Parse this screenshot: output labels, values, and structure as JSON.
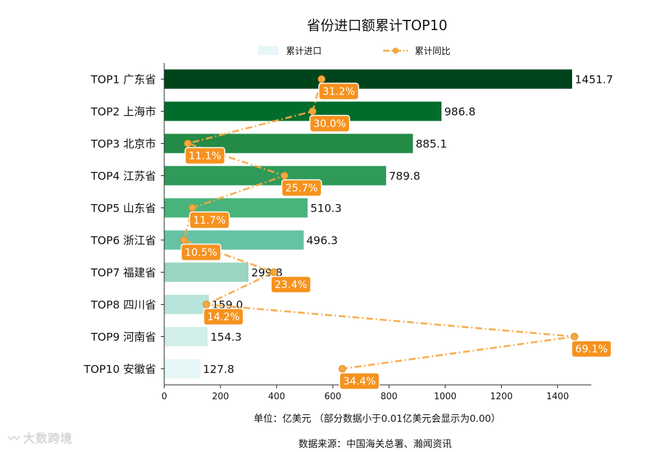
{
  "chart_data": {
    "type": "bar",
    "orientation": "horizontal",
    "title": "省份进口额累计TOP10",
    "categories": [
      "TOP1 广东省",
      "TOP2 上海市",
      "TOP3 北京市",
      "TOP4 江苏省",
      "TOP5 山东省",
      "TOP6 浙江省",
      "TOP7 福建省",
      "TOP8 四川省",
      "TOP9 河南省",
      "TOP10 安徽省"
    ],
    "series": [
      {
        "name": "累计进口",
        "type": "bar",
        "values": [
          1451.7,
          986.8,
          885.1,
          789.8,
          510.3,
          496.3,
          299.8,
          159.0,
          154.3,
          127.8
        ],
        "value_labels": [
          "1451.7",
          "986.8",
          "885.1",
          "789.8",
          "510.3",
          "496.3",
          "299.8",
          "159.0",
          "154.3",
          "127.8"
        ],
        "colors": [
          "#00441b",
          "#006d2c",
          "#238b45",
          "#2f9a59",
          "#49b37c",
          "#66c2a4",
          "#99d5c2",
          "#b8e3da",
          "#d2eeea",
          "#e7f6f7"
        ]
      },
      {
        "name": "累计同比",
        "type": "line",
        "values_pct": [
          31.2,
          30.0,
          11.1,
          25.7,
          11.7,
          10.5,
          23.4,
          14.2,
          69.1,
          34.4
        ],
        "value_labels": [
          "31.2%",
          "30.0%",
          "11.1%",
          "25.7%",
          "11.7%",
          "10.5%",
          "23.4%",
          "14.2%",
          "69.1%",
          "34.4%"
        ],
        "x_position_units": [
          560,
          528,
          84,
          428,
          100,
          70,
          390,
          150,
          1460,
          634
        ],
        "color": "#f5a742",
        "label_color": "#f6921e"
      }
    ],
    "xlim": [
      0,
      1520
    ],
    "xticks": [
      0,
      200,
      400,
      600,
      800,
      1000,
      1200,
      1400
    ],
    "xlabel": "单位：亿美元  （部分数据小于0.01亿美元会显示为0.00）",
    "source": "数据来源：中国海关总署、瀚闻资讯",
    "legend_position": "top-center"
  },
  "watermark": "大数跨境",
  "watermark_icon": "wave-logo-icon"
}
